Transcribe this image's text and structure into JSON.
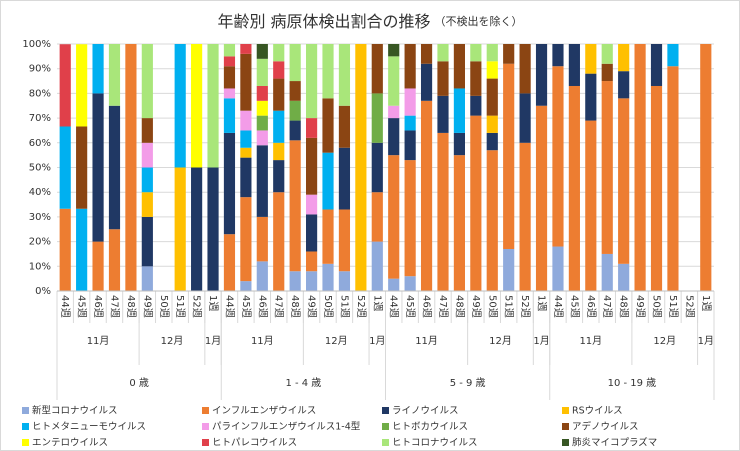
{
  "chart_data": {
    "type": "stacked_bar_100",
    "title": "年齢別 病原体検出割合の推移",
    "subtitle": "（不検出を除く）",
    "groups": [
      {
        "label": "0 歳",
        "months": [
          {
            "label": "11月",
            "weeks": [
              "44週",
              "45週",
              "46週",
              "47週",
              "48週"
            ]
          },
          {
            "label": "12月",
            "weeks": [
              "49週",
              "50週",
              "51週",
              "52週"
            ]
          },
          {
            "label": "1月",
            "weeks": [
              "1週"
            ]
          }
        ]
      },
      {
        "label": "1 - 4 歳",
        "months": [
          {
            "label": "11月",
            "weeks": [
              "44週",
              "45週",
              "46週",
              "47週",
              "48週"
            ]
          },
          {
            "label": "12月",
            "weeks": [
              "49週",
              "50週",
              "51週",
              "52週"
            ]
          },
          {
            "label": "1月",
            "weeks": [
              "1週"
            ]
          }
        ]
      },
      {
        "label": "5 - 9 歳",
        "months": [
          {
            "label": "11月",
            "weeks": [
              "44週",
              "45週",
              "46週",
              "47週",
              "48週"
            ]
          },
          {
            "label": "12月",
            "weeks": [
              "49週",
              "50週",
              "51週",
              "52週"
            ]
          },
          {
            "label": "1月",
            "weeks": [
              "1週"
            ]
          }
        ]
      },
      {
        "label": "10 - 19 歳",
        "months": [
          {
            "label": "11月",
            "weeks": [
              "44週",
              "45週",
              "46週",
              "47週",
              "48週"
            ]
          },
          {
            "label": "12月",
            "weeks": [
              "49週",
              "50週",
              "51週",
              "52週"
            ]
          },
          {
            "label": "1月",
            "weeks": [
              "1週"
            ]
          }
        ]
      }
    ],
    "ylim": [
      0,
      100
    ],
    "yticks": [
      {
        "value": 0,
        "label": "0%"
      },
      {
        "value": 10,
        "label": "10%"
      },
      {
        "value": 20,
        "label": "20%"
      },
      {
        "value": 30,
        "label": "30%"
      },
      {
        "value": 40,
        "label": "40%"
      },
      {
        "value": 50,
        "label": "50%"
      },
      {
        "value": 60,
        "label": "60%"
      },
      {
        "value": 70,
        "label": "70%"
      },
      {
        "value": 80,
        "label": "80%"
      },
      {
        "value": 90,
        "label": "90%"
      },
      {
        "value": 100,
        "label": "100%"
      }
    ],
    "grid": true,
    "series": [
      {
        "name": "新型コロナウイルス",
        "color": "#8faadc",
        "values": [
          0,
          0,
          0,
          0,
          0,
          10,
          0,
          0,
          0,
          0,
          0,
          4,
          12,
          0,
          8,
          8,
          11,
          8,
          0,
          20,
          5,
          6,
          0,
          0,
          0,
          0,
          0,
          17,
          0,
          0,
          18,
          0,
          0,
          15,
          11,
          0,
          0,
          0,
          0,
          0
        ]
      },
      {
        "name": "インフルエンザウイルス",
        "color": "#ed7d31",
        "values": [
          33.3,
          0,
          20,
          25,
          100,
          0,
          0,
          0,
          0,
          0,
          23,
          34,
          18,
          40,
          53,
          8,
          22,
          25,
          0,
          20,
          50,
          47,
          77,
          64,
          55,
          71,
          57,
          75,
          60,
          75,
          73,
          83,
          69,
          70,
          67,
          100,
          83,
          91,
          0,
          100
        ]
      },
      {
        "name": "ライノウイルス",
        "color": "#203864",
        "values": [
          0,
          0,
          60,
          50,
          0,
          20,
          0,
          0,
          50,
          50,
          41,
          16,
          29,
          13,
          8,
          15,
          0,
          25,
          0,
          20,
          15,
          12,
          15,
          15,
          9,
          8,
          7,
          0,
          20,
          25,
          9,
          17,
          19,
          0,
          11,
          0,
          17,
          0,
          0,
          0
        ]
      },
      {
        "name": "RSウイルス",
        "color": "#ffc000",
        "values": [
          0,
          0,
          0,
          0,
          0,
          10,
          0,
          50,
          0,
          0,
          0,
          4,
          0,
          7,
          0,
          0,
          0,
          0,
          100,
          0,
          0,
          0,
          0,
          0,
          0,
          0,
          7,
          0,
          0,
          0,
          0,
          0,
          12,
          0,
          11,
          0,
          0,
          0,
          0,
          0
        ]
      },
      {
        "name": "ヒトメタニューモウイルス",
        "color": "#00b0f0",
        "values": [
          33.3,
          33.3,
          20,
          0,
          0,
          10,
          0,
          50,
          0,
          0,
          14,
          7,
          0,
          13,
          0,
          0,
          23,
          0,
          0,
          0,
          0,
          6,
          0,
          0,
          18,
          0,
          0,
          0,
          0,
          0,
          0,
          0,
          0,
          0,
          0,
          0,
          0,
          9,
          0,
          0
        ]
      },
      {
        "name": "パラインフルエンザウイルス1-4型",
        "color": "#f39ce8",
        "values": [
          0,
          0,
          0,
          0,
          0,
          10,
          0,
          0,
          0,
          0,
          4,
          8,
          6,
          0,
          0,
          8,
          0,
          0,
          0,
          0,
          5,
          11,
          0,
          0,
          0,
          0,
          0,
          0,
          0,
          0,
          0,
          0,
          0,
          0,
          0,
          0,
          0,
          0,
          0,
          0
        ]
      },
      {
        "name": "ヒトボカウイルス",
        "color": "#70ad47",
        "values": [
          0,
          0,
          0,
          0,
          0,
          0,
          0,
          0,
          0,
          0,
          0,
          0,
          6,
          0,
          8,
          0,
          0,
          0,
          0,
          20,
          0,
          0,
          0,
          0,
          0,
          0,
          0,
          0,
          0,
          0,
          0,
          0,
          0,
          0,
          0,
          0,
          0,
          0,
          0,
          0
        ]
      },
      {
        "name": "アデノウイルス",
        "color": "#8b4513",
        "values": [
          0,
          33.3,
          0,
          0,
          0,
          10,
          0,
          0,
          0,
          0,
          9,
          23,
          0,
          13,
          8,
          23,
          22,
          17,
          0,
          20,
          0,
          18,
          8,
          14,
          18,
          14,
          15,
          8,
          20,
          0,
          0,
          0,
          0,
          7,
          0,
          0,
          0,
          0,
          0,
          0
        ]
      },
      {
        "name": "エンテロウイルス",
        "color": "#ffff00",
        "values": [
          0,
          33.3,
          0,
          0,
          0,
          0,
          0,
          0,
          50,
          0,
          0,
          0,
          6,
          0,
          0,
          0,
          0,
          0,
          0,
          0,
          0,
          0,
          0,
          0,
          0,
          0,
          7,
          0,
          0,
          0,
          0,
          0,
          0,
          0,
          0,
          0,
          0,
          0,
          0,
          0
        ]
      },
      {
        "name": "ヒトパレコウイルス",
        "color": "#e0404a",
        "values": [
          33.3,
          0,
          0,
          0,
          0,
          0,
          0,
          0,
          0,
          0,
          4,
          4,
          6,
          7,
          0,
          8,
          0,
          0,
          0,
          0,
          0,
          0,
          0,
          0,
          0,
          0,
          0,
          0,
          0,
          0,
          0,
          0,
          0,
          0,
          0,
          0,
          0,
          0,
          0,
          0
        ]
      },
      {
        "name": "ヒトコロナウイルス",
        "color": "#a9e67a",
        "values": [
          0,
          0,
          0,
          25,
          0,
          30,
          0,
          0,
          0,
          50,
          5,
          0,
          11,
          7,
          15,
          30,
          22,
          25,
          0,
          0,
          20,
          0,
          0,
          7,
          0,
          7,
          7,
          0,
          0,
          0,
          0,
          0,
          0,
          8,
          0,
          0,
          0,
          0,
          0,
          0
        ]
      },
      {
        "name": "肺炎マイコプラズマ",
        "color": "#375623",
        "values": [
          0,
          0,
          0,
          0,
          0,
          0,
          0,
          0,
          0,
          0,
          0,
          0,
          6,
          0,
          0,
          0,
          0,
          0,
          0,
          0,
          5,
          0,
          0,
          0,
          0,
          0,
          0,
          0,
          0,
          0,
          0,
          0,
          0,
          0,
          0,
          0,
          0,
          0,
          0,
          0
        ]
      }
    ]
  }
}
